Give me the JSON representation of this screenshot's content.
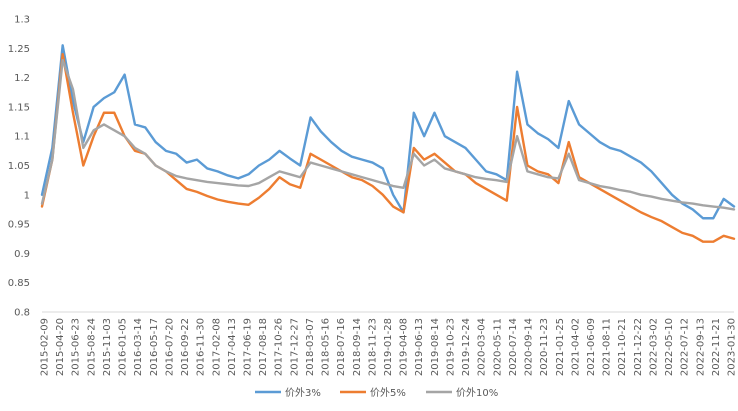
{
  "chart_data": {
    "type": "line",
    "title": "",
    "xlabel": "",
    "ylabel": "",
    "ylim": [
      0.8,
      1.3
    ],
    "y_ticks": [
      "0.8",
      "0.85",
      "0.9",
      "0.95",
      "1",
      "1.05",
      "1.1",
      "1.15",
      "1.2",
      "1.25",
      "1.3"
    ],
    "grid": false,
    "legend_position": "bottom",
    "x_tick_labels": [
      "2015-02-09",
      "2015-04-20",
      "2015-06-23",
      "2015-08-24",
      "2015-11-03",
      "2016-01-05",
      "2016-03-14",
      "2016-05-17",
      "2016-07-20",
      "2016-09-22",
      "2016-11-30",
      "2017-02-08",
      "2017-04-13",
      "2017-06-19",
      "2017-08-18",
      "2017-10-26",
      "2017-12-27",
      "2018-03-07",
      "2018-05-16",
      "2018-07-16",
      "2018-09-14",
      "2018-11-23",
      "2019-01-28",
      "2019-04-08",
      "2019-06-13",
      "2019-08-14",
      "2019-10-23",
      "2019-12-24",
      "2020-03-04",
      "2020-05-11",
      "2020-07-14",
      "2020-09-14",
      "2020-11-23",
      "2021-01-25",
      "2021-04-02",
      "2021-06-09",
      "2021-08-11",
      "2021-10-21",
      "2021-12-22",
      "2022-03-02",
      "2022-05-10",
      "2022-07-12",
      "2022-09-13",
      "2022-11-21",
      "2023-01-30"
    ],
    "series": [
      {
        "name": "价外3%",
        "color": "#5B9BD5",
        "values": [
          [
            0,
            1.0
          ],
          [
            1,
            1.08
          ],
          [
            2,
            1.255
          ],
          [
            3,
            1.16
          ],
          [
            4,
            1.09
          ],
          [
            5,
            1.15
          ],
          [
            6,
            1.165
          ],
          [
            7,
            1.175
          ],
          [
            8,
            1.205
          ],
          [
            9,
            1.12
          ],
          [
            10,
            1.115
          ],
          [
            11,
            1.09
          ],
          [
            12,
            1.075
          ],
          [
            13,
            1.07
          ],
          [
            14,
            1.055
          ],
          [
            15,
            1.06
          ],
          [
            16,
            1.045
          ],
          [
            17,
            1.04
          ],
          [
            18,
            1.033
          ],
          [
            19,
            1.028
          ],
          [
            20,
            1.035
          ],
          [
            21,
            1.05
          ],
          [
            22,
            1.06
          ],
          [
            23,
            1.075
          ],
          [
            24,
            1.062
          ],
          [
            25,
            1.05
          ],
          [
            26,
            1.132
          ],
          [
            27,
            1.108
          ],
          [
            28,
            1.09
          ],
          [
            29,
            1.075
          ],
          [
            30,
            1.065
          ],
          [
            31,
            1.06
          ],
          [
            32,
            1.055
          ],
          [
            33,
            1.045
          ],
          [
            34,
            1.0
          ],
          [
            35,
            0.97
          ],
          [
            36,
            1.14
          ],
          [
            37,
            1.1
          ],
          [
            38,
            1.14
          ],
          [
            39,
            1.1
          ],
          [
            40,
            1.09
          ],
          [
            41,
            1.08
          ],
          [
            42,
            1.06
          ],
          [
            43,
            1.04
          ],
          [
            44,
            1.035
          ],
          [
            45,
            1.025
          ],
          [
            46,
            1.21
          ],
          [
            47,
            1.12
          ],
          [
            48,
            1.105
          ],
          [
            49,
            1.095
          ],
          [
            50,
            1.08
          ],
          [
            51,
            1.16
          ],
          [
            52,
            1.12
          ],
          [
            53,
            1.105
          ],
          [
            54,
            1.09
          ],
          [
            55,
            1.08
          ],
          [
            56,
            1.075
          ],
          [
            57,
            1.065
          ],
          [
            58,
            1.055
          ],
          [
            59,
            1.04
          ],
          [
            60,
            1.02
          ],
          [
            61,
            1.0
          ],
          [
            62,
            0.985
          ],
          [
            63,
            0.975
          ],
          [
            64,
            0.96
          ],
          [
            65,
            0.96
          ],
          [
            66,
            0.993
          ],
          [
            67,
            0.98
          ]
        ]
      },
      {
        "name": "价外5%",
        "color": "#ED7D31",
        "values": [
          [
            0,
            0.98
          ],
          [
            1,
            1.06
          ],
          [
            2,
            1.24
          ],
          [
            3,
            1.14
          ],
          [
            4,
            1.05
          ],
          [
            5,
            1.1
          ],
          [
            6,
            1.14
          ],
          [
            7,
            1.14
          ],
          [
            8,
            1.1
          ],
          [
            9,
            1.075
          ],
          [
            10,
            1.07
          ],
          [
            11,
            1.05
          ],
          [
            12,
            1.04
          ],
          [
            13,
            1.025
          ],
          [
            14,
            1.01
          ],
          [
            15,
            1.005
          ],
          [
            16,
            0.998
          ],
          [
            17,
            0.992
          ],
          [
            18,
            0.988
          ],
          [
            19,
            0.985
          ],
          [
            20,
            0.983
          ],
          [
            21,
            0.995
          ],
          [
            22,
            1.01
          ],
          [
            23,
            1.03
          ],
          [
            24,
            1.018
          ],
          [
            25,
            1.012
          ],
          [
            26,
            1.07
          ],
          [
            27,
            1.06
          ],
          [
            28,
            1.05
          ],
          [
            29,
            1.04
          ],
          [
            30,
            1.03
          ],
          [
            31,
            1.025
          ],
          [
            32,
            1.015
          ],
          [
            33,
            1.0
          ],
          [
            34,
            0.98
          ],
          [
            35,
            0.97
          ],
          [
            36,
            1.08
          ],
          [
            37,
            1.06
          ],
          [
            38,
            1.07
          ],
          [
            39,
            1.055
          ],
          [
            40,
            1.04
          ],
          [
            41,
            1.035
          ],
          [
            42,
            1.02
          ],
          [
            43,
            1.01
          ],
          [
            44,
            1.0
          ],
          [
            45,
            0.99
          ],
          [
            46,
            1.15
          ],
          [
            47,
            1.05
          ],
          [
            48,
            1.04
          ],
          [
            49,
            1.035
          ],
          [
            50,
            1.02
          ],
          [
            51,
            1.09
          ],
          [
            52,
            1.03
          ],
          [
            53,
            1.02
          ],
          [
            54,
            1.01
          ],
          [
            55,
            1.0
          ],
          [
            56,
            0.99
          ],
          [
            57,
            0.98
          ],
          [
            58,
            0.97
          ],
          [
            59,
            0.962
          ],
          [
            60,
            0.955
          ],
          [
            61,
            0.945
          ],
          [
            62,
            0.935
          ],
          [
            63,
            0.93
          ],
          [
            64,
            0.92
          ],
          [
            65,
            0.92
          ],
          [
            66,
            0.93
          ],
          [
            67,
            0.925
          ]
        ]
      },
      {
        "name": "价外10%",
        "color": "#A5A5A5",
        "values": [
          [
            0,
            0.985
          ],
          [
            1,
            1.06
          ],
          [
            2,
            1.23
          ],
          [
            3,
            1.18
          ],
          [
            4,
            1.08
          ],
          [
            5,
            1.11
          ],
          [
            6,
            1.12
          ],
          [
            7,
            1.11
          ],
          [
            8,
            1.1
          ],
          [
            9,
            1.08
          ],
          [
            10,
            1.07
          ],
          [
            11,
            1.05
          ],
          [
            12,
            1.04
          ],
          [
            13,
            1.032
          ],
          [
            14,
            1.028
          ],
          [
            15,
            1.025
          ],
          [
            16,
            1.022
          ],
          [
            17,
            1.02
          ],
          [
            18,
            1.018
          ],
          [
            19,
            1.016
          ],
          [
            20,
            1.015
          ],
          [
            21,
            1.02
          ],
          [
            22,
            1.03
          ],
          [
            23,
            1.04
          ],
          [
            24,
            1.035
          ],
          [
            25,
            1.03
          ],
          [
            26,
            1.055
          ],
          [
            27,
            1.05
          ],
          [
            28,
            1.045
          ],
          [
            29,
            1.04
          ],
          [
            30,
            1.035
          ],
          [
            31,
            1.03
          ],
          [
            32,
            1.025
          ],
          [
            33,
            1.02
          ],
          [
            34,
            1.015
          ],
          [
            35,
            1.012
          ],
          [
            36,
            1.07
          ],
          [
            37,
            1.05
          ],
          [
            38,
            1.06
          ],
          [
            39,
            1.045
          ],
          [
            40,
            1.04
          ],
          [
            41,
            1.035
          ],
          [
            42,
            1.03
          ],
          [
            43,
            1.027
          ],
          [
            44,
            1.025
          ],
          [
            45,
            1.022
          ],
          [
            46,
            1.1
          ],
          [
            47,
            1.04
          ],
          [
            48,
            1.035
          ],
          [
            49,
            1.03
          ],
          [
            50,
            1.028
          ],
          [
            51,
            1.07
          ],
          [
            52,
            1.025
          ],
          [
            53,
            1.02
          ],
          [
            54,
            1.015
          ],
          [
            55,
            1.012
          ],
          [
            56,
            1.008
          ],
          [
            57,
            1.005
          ],
          [
            58,
            1.0
          ],
          [
            59,
            0.997
          ],
          [
            60,
            0.993
          ],
          [
            61,
            0.99
          ],
          [
            62,
            0.987
          ],
          [
            63,
            0.985
          ],
          [
            64,
            0.982
          ],
          [
            65,
            0.98
          ],
          [
            66,
            0.978
          ],
          [
            67,
            0.975
          ]
        ]
      }
    ]
  }
}
